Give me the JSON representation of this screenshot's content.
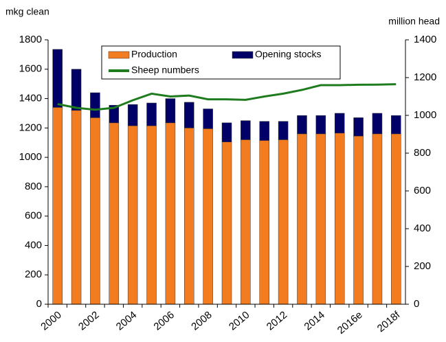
{
  "chart_data": {
    "type": "bar",
    "stacked": true,
    "y_label": "mkg clean",
    "y2_label": "million head",
    "categories": [
      "2000",
      null,
      "2002",
      null,
      "2004",
      null,
      "2006",
      null,
      "2008",
      null,
      "2010",
      null,
      "2012",
      null,
      "2014",
      null,
      "2016e",
      null,
      "2018f"
    ],
    "series": [
      {
        "name": "Production",
        "color": "#f47c20",
        "values": [
          1340,
          1320,
          1270,
          1235,
          1215,
          1215,
          1235,
          1200,
          1195,
          1105,
          1120,
          1115,
          1120,
          1160,
          1160,
          1165,
          1145,
          1160,
          1160
        ]
      },
      {
        "name": "Opening stocks",
        "color": "#000066",
        "values": [
          395,
          280,
          170,
          120,
          145,
          155,
          165,
          175,
          135,
          130,
          130,
          130,
          125,
          125,
          125,
          135,
          125,
          140,
          125
        ]
      },
      {
        "name": "Sheep numbers",
        "color": "#1e7b1e",
        "axis": "y2",
        "values": [
          1060,
          1040,
          1030,
          1040,
          1080,
          1115,
          1100,
          1105,
          1085,
          1085,
          1082,
          1100,
          1115,
          1135,
          1160,
          1160,
          1162,
          1163,
          1165
        ]
      }
    ],
    "ylim": [
      0,
      1800
    ],
    "yticks": [
      0,
      200,
      400,
      600,
      800,
      1000,
      1200,
      1400,
      1600,
      1800
    ],
    "y2lim": [
      0,
      1400
    ],
    "y2ticks": [
      0,
      200,
      400,
      600,
      800,
      1000,
      1200,
      1400
    ],
    "legend": "top"
  }
}
